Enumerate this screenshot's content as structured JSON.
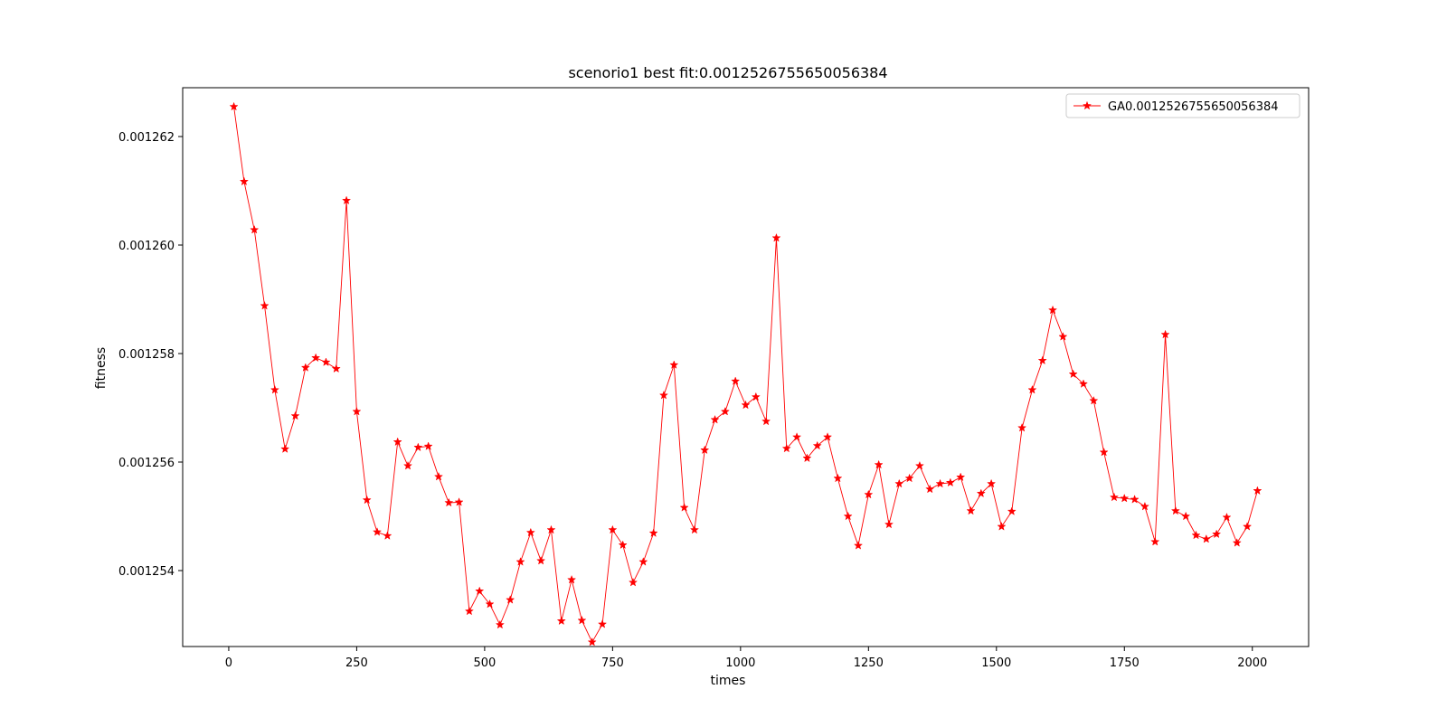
{
  "chart_data": {
    "type": "line",
    "title": "scenorio1 best fit:0.0012526755650056384",
    "xlabel": "times",
    "ylabel": "fitness",
    "xlim": [
      -90,
      2110
    ],
    "ylim": [
      0.0012526,
      0.0012629
    ],
    "xticks": [
      0,
      250,
      500,
      750,
      1000,
      1250,
      1500,
      1750,
      2000
    ],
    "xtick_labels": [
      "0",
      "250",
      "500",
      "750",
      "1000",
      "1250",
      "1500",
      "1750",
      "2000"
    ],
    "yticks": [
      0.001254,
      0.001256,
      0.001258,
      0.00126,
      0.001262
    ],
    "ytick_labels": [
      "0.001254",
      "0.001256",
      "0.001258",
      "0.001260",
      "0.001262"
    ],
    "grid": false,
    "legend_position": "upper-right",
    "series": [
      {
        "name": "GA0.0012526755650056384",
        "color": "#ff0000",
        "marker": "star",
        "x": [
          10,
          30,
          50,
          70,
          90,
          110,
          130,
          150,
          170,
          190,
          210,
          230,
          250,
          270,
          290,
          310,
          330,
          350,
          370,
          390,
          410,
          430,
          450,
          470,
          490,
          510,
          530,
          550,
          570,
          590,
          610,
          630,
          650,
          670,
          690,
          710,
          730,
          750,
          770,
          790,
          810,
          830,
          850,
          870,
          890,
          910,
          930,
          950,
          970,
          990,
          1010,
          1030,
          1050,
          1070,
          1090,
          1110,
          1130,
          1150,
          1170,
          1190,
          1210,
          1230,
          1250,
          1270,
          1290,
          1310,
          1330,
          1350,
          1370,
          1390,
          1410,
          1430,
          1450,
          1470,
          1490,
          1510,
          1530,
          1550,
          1570,
          1590,
          1610,
          1630,
          1650,
          1670,
          1690,
          1710,
          1730,
          1750,
          1770,
          1790,
          1810,
          1830,
          1850,
          1870,
          1890,
          1910,
          1930,
          1950,
          1970,
          1990,
          2010
        ],
        "y": [
          0.00126255,
          0.00126117,
          0.00126028,
          0.00125888,
          0.00125733,
          0.00125624,
          0.00125685,
          0.00125774,
          0.00125792,
          0.00125784,
          0.00125772,
          0.00126082,
          0.00125693,
          0.0012553,
          0.00125471,
          0.00125464,
          0.00125637,
          0.00125593,
          0.00125627,
          0.00125629,
          0.00125573,
          0.00125525,
          0.00125526,
          0.00125325,
          0.00125362,
          0.00125338,
          0.001253,
          0.00125346,
          0.00125416,
          0.0012547,
          0.00125418,
          0.00125475,
          0.00125307,
          0.00125383,
          0.00125308,
          0.00125268,
          0.00125301,
          0.00125475,
          0.00125447,
          0.00125378,
          0.00125416,
          0.00125469,
          0.00125723,
          0.00125779,
          0.00125516,
          0.00125475,
          0.00125622,
          0.00125678,
          0.00125693,
          0.00125749,
          0.00125705,
          0.0012572,
          0.00125675,
          0.00126013,
          0.00125625,
          0.00125646,
          0.00125607,
          0.0012563,
          0.00125646,
          0.0012557,
          0.001255,
          0.00125446,
          0.0012554,
          0.00125595,
          0.00125485,
          0.0012556,
          0.0012557,
          0.00125593,
          0.0012555,
          0.0012556,
          0.00125562,
          0.00125572,
          0.0012551,
          0.00125542,
          0.0012556,
          0.00125481,
          0.00125509,
          0.00125663,
          0.00125733,
          0.00125787,
          0.0012588,
          0.00125831,
          0.00125762,
          0.00125744,
          0.00125713,
          0.00125618,
          0.00125535,
          0.00125533,
          0.00125531,
          0.00125518,
          0.00125453,
          0.00125835,
          0.0012551,
          0.001255,
          0.00125465,
          0.00125458,
          0.00125467,
          0.00125498,
          0.00125451,
          0.00125481,
          0.00125547
        ]
      }
    ]
  }
}
